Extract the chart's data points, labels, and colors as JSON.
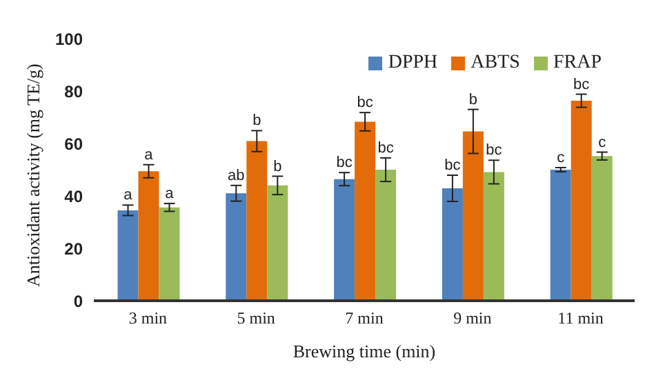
{
  "chart_data": {
    "type": "bar",
    "xlabel": "Brewing time (min)",
    "ylabel": "Antioxidant activity (mg TE/g)",
    "categories": [
      "3 min",
      "5 min",
      "7 min",
      "9 min",
      "11 min"
    ],
    "series": [
      {
        "name": "DPPH",
        "color": "#4f81bd",
        "values": [
          34.5,
          41,
          46.4,
          42.9,
          50
        ],
        "errors": [
          2,
          3,
          2.5,
          5,
          0.8
        ],
        "value_labels": [
          "a",
          "ab",
          "bc",
          "bc",
          "c"
        ]
      },
      {
        "name": "ABTS",
        "color": "#e36c0a",
        "values": [
          49.4,
          60.9,
          68.3,
          64.6,
          76.3
        ],
        "errors": [
          2.5,
          4,
          3.5,
          8.4,
          2.5
        ],
        "value_labels": [
          "a",
          "b",
          "bc",
          "b",
          "bc"
        ]
      },
      {
        "name": "FRAP",
        "color": "#9bbb59",
        "values": [
          35.6,
          44,
          50,
          49.1,
          55.2
        ],
        "errors": [
          1.5,
          3.5,
          4.5,
          4.5,
          1.5
        ],
        "value_labels": [
          "a",
          "b",
          "bc",
          "bc",
          "c"
        ]
      }
    ],
    "ylim": [
      0,
      100
    ],
    "yticks": [
      0,
      20,
      40,
      60,
      80,
      100
    ],
    "grid": false,
    "legend": "top right"
  }
}
